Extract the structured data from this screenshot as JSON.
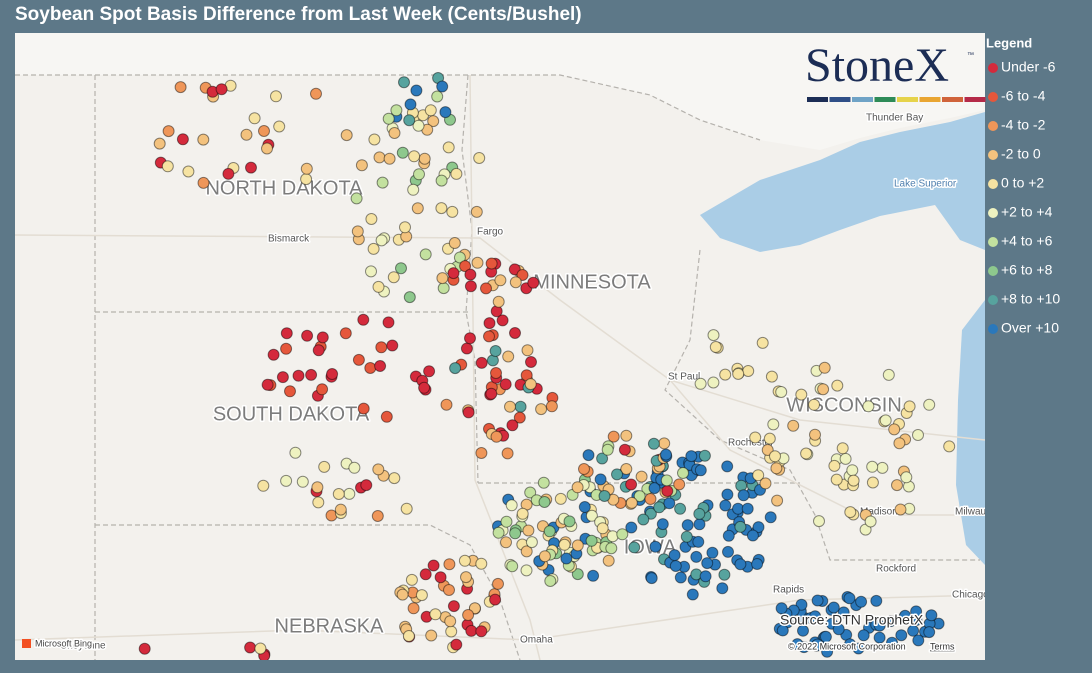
{
  "title": "Soybean Spot Basis Difference from Last Week (Cents/Bushel)",
  "logo": {
    "name": "StoneX",
    "mark": "™"
  },
  "legend": {
    "title": "Legend",
    "items": [
      {
        "label": "Under -6",
        "color": "#d42a3c"
      },
      {
        "label": "-6 to -4",
        "color": "#e5573b"
      },
      {
        "label": "-4 to -2",
        "color": "#ef9659"
      },
      {
        "label": "-2 to 0",
        "color": "#f3c27e"
      },
      {
        "label": "0 to +2",
        "color": "#f6e3a2"
      },
      {
        "label": "+2 to +4",
        "color": "#eef2c0"
      },
      {
        "label": "+4 to +6",
        "color": "#c3e19f"
      },
      {
        "label": "+6 to +8",
        "color": "#8ec88d"
      },
      {
        "label": "+8 to +10",
        "color": "#57a39e"
      },
      {
        "label": "Over +10",
        "color": "#2a78bb"
      }
    ]
  },
  "map": {
    "regions": [
      "NORTH DAKOTA",
      "MINNESOTA",
      "SOUTH DAKOTA",
      "WISCONSIN",
      "NEBRASKA",
      "IOWA"
    ],
    "places": [
      "Thunder Bay",
      "Lake Superior",
      "Bismarck",
      "Fargo",
      "St Paul",
      "Rochester",
      "Madison",
      "Milwaukee",
      "Rockford",
      "Chicago",
      "Rapids",
      "Omaha",
      "Cheyenne"
    ],
    "source": "Source: DTN ProphetX",
    "attribution": "© 2022 Microsoft Corporation",
    "terms": "Terms",
    "provider": "Microsoft Bing"
  }
}
